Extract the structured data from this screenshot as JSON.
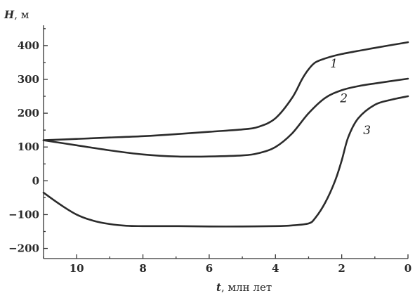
{
  "chart_data": {
    "type": "line",
    "ylabel": {
      "var": "H",
      "unit": ", м"
    },
    "xlabel": {
      "var": "t",
      "unit": ", млн лет"
    },
    "xlim": [
      11,
      0
    ],
    "ylim": [
      -230,
      460
    ],
    "x_ticks": [
      10,
      8,
      6,
      4,
      2,
      0
    ],
    "y_ticks": [
      400,
      300,
      200,
      100,
      0,
      -100,
      -200
    ],
    "grid": false,
    "series": [
      {
        "name": "1",
        "x": [
          11,
          10,
          9,
          8,
          7,
          6,
          5,
          4.5,
          4,
          3.5,
          3.2,
          3,
          2.8,
          2.5,
          2,
          1,
          0
        ],
        "y": [
          120,
          124,
          128,
          132,
          138,
          145,
          152,
          160,
          185,
          245,
          300,
          330,
          350,
          362,
          375,
          393,
          410
        ]
      },
      {
        "name": "2",
        "x": [
          11,
          10,
          9,
          8,
          7,
          6,
          5,
          4.5,
          4,
          3.5,
          3,
          2.5,
          2,
          1.5,
          1,
          0
        ],
        "y": [
          120,
          105,
          90,
          78,
          72,
          72,
          75,
          82,
          100,
          140,
          200,
          245,
          268,
          280,
          288,
          302
        ]
      },
      {
        "name": "3",
        "x": [
          11,
          10.5,
          10,
          9.5,
          9,
          8.5,
          8,
          7,
          6,
          5,
          4,
          3.5,
          3,
          2.8,
          2.5,
          2.2,
          2,
          1.8,
          1.5,
          1,
          0.5,
          0
        ],
        "y": [
          -35,
          -70,
          -100,
          -118,
          -128,
          -133,
          -134,
          -134,
          -135,
          -135,
          -134,
          -132,
          -126,
          -110,
          -65,
          0,
          60,
          130,
          185,
          225,
          240,
          250
        ]
      }
    ],
    "series_label_positions": [
      {
        "x": 2.35,
        "y": 335
      },
      {
        "x": 2.05,
        "y": 232
      },
      {
        "x": 1.35,
        "y": 138
      }
    ]
  }
}
